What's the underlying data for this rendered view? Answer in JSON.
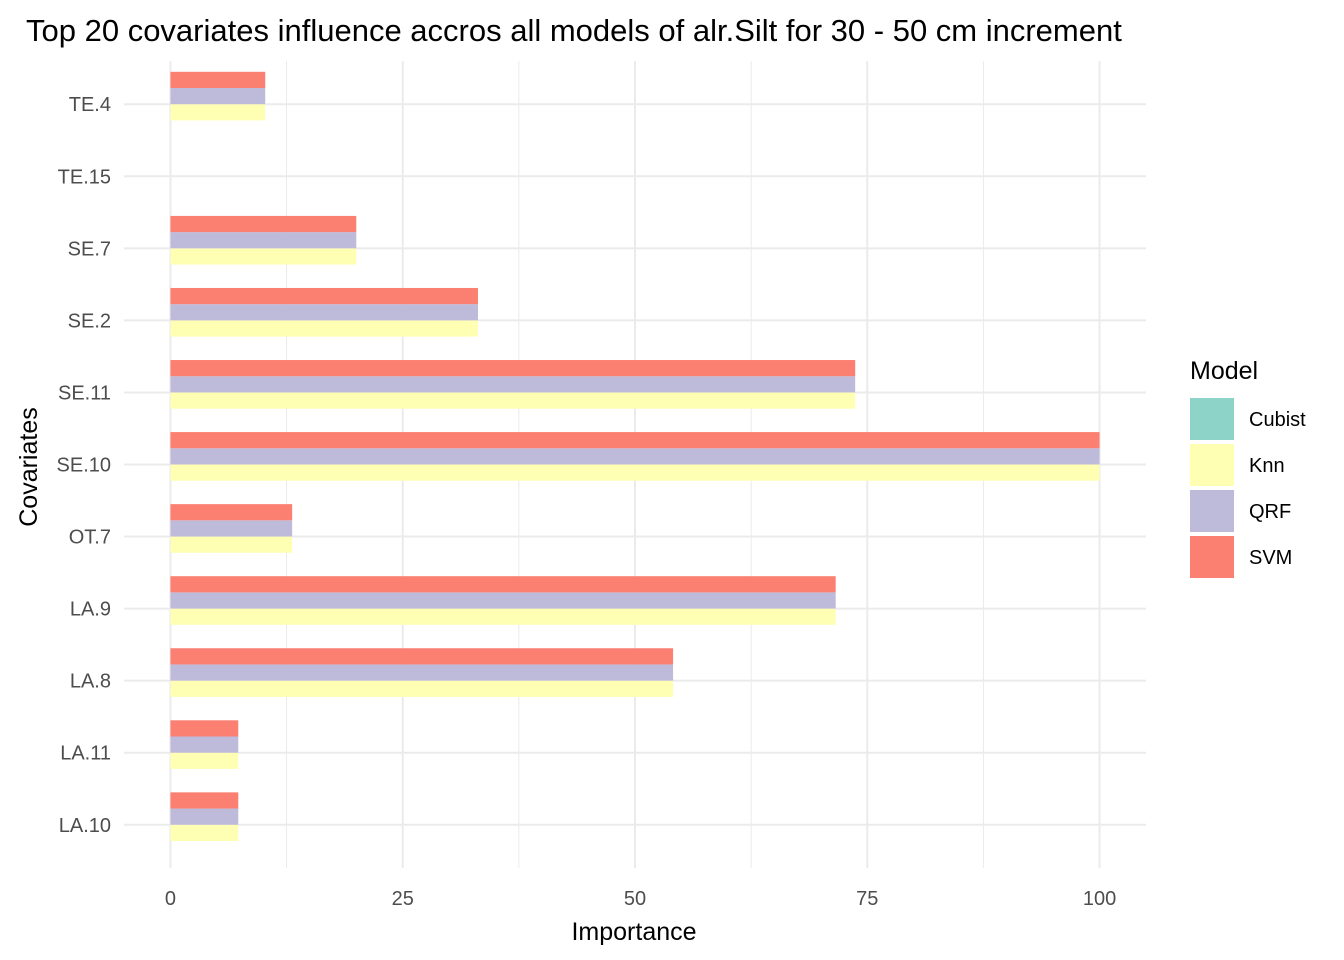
{
  "chart_data": {
    "type": "bar",
    "orientation": "horizontal",
    "title": "Top 20 covariates influence accros all models of alr.Silt for 30 - 50 cm increment",
    "xlabel": "Importance",
    "ylabel": "Covariates",
    "xlim": [
      -5,
      105
    ],
    "x_ticks": [
      "0",
      "25",
      "50",
      "75",
      "100"
    ],
    "categories": [
      "LA.10",
      "LA.11",
      "LA.8",
      "LA.9",
      "OT.7",
      "SE.10",
      "SE.11",
      "SE.2",
      "SE.7",
      "TE.15",
      "TE.4"
    ],
    "legend": {
      "title": "Model",
      "position": "right",
      "entries": [
        "Cubist",
        "Knn",
        "QRF",
        "SVM"
      ]
    },
    "colors": {
      "Cubist": "#8dd3c7",
      "Knn": "#ffffb3",
      "QRF": "#bebada",
      "SVM": "#fb8072"
    },
    "grid": true,
    "series": [
      {
        "name": "Cubist",
        "values": [
          0,
          0,
          0,
          0,
          0,
          0,
          0,
          0,
          0,
          0,
          0
        ]
      },
      {
        "name": "Knn",
        "values": [
          7.3,
          7.3,
          54.1,
          71.6,
          13.1,
          100,
          73.7,
          33.1,
          20,
          0,
          10.2
        ]
      },
      {
        "name": "QRF",
        "values": [
          7.3,
          7.3,
          54.1,
          71.6,
          13.1,
          100,
          73.7,
          33.1,
          20,
          0,
          10.2
        ]
      },
      {
        "name": "SVM",
        "values": [
          7.3,
          7.3,
          54.1,
          71.6,
          13.1,
          100,
          73.7,
          33.1,
          20,
          0,
          10.2
        ]
      }
    ]
  }
}
